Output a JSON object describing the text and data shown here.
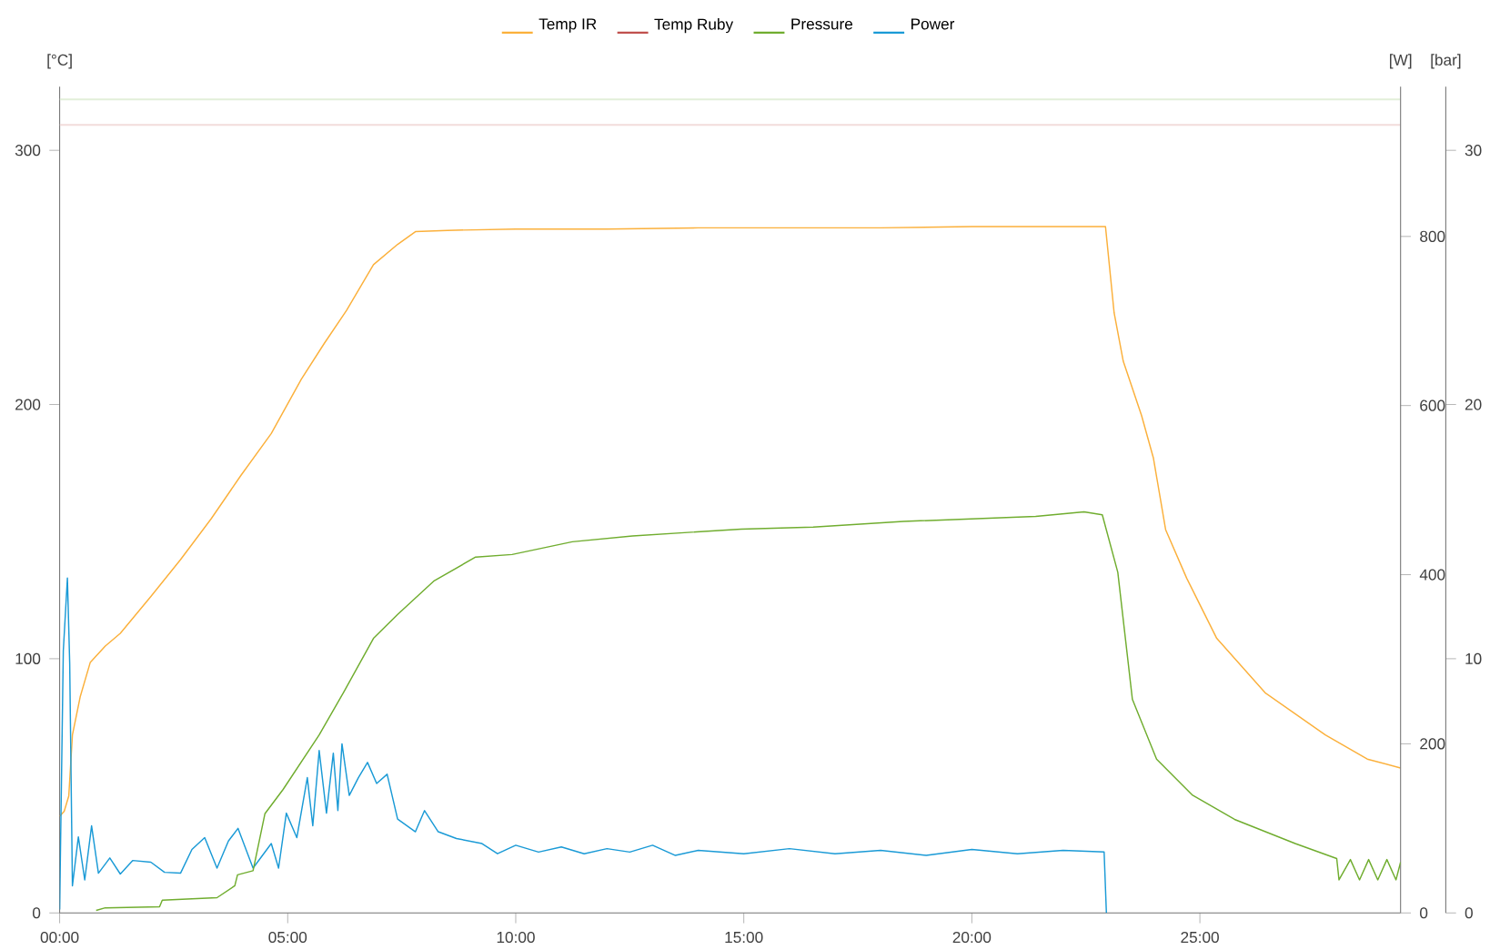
{
  "chart_data": {
    "type": "line",
    "ylabel": "[°C]",
    "y2label": "[W]",
    "y3label": "[bar]",
    "xlim": [
      0,
      29.4
    ],
    "xticks": [
      {
        "value": 0,
        "label": "00:00"
      },
      {
        "value": 5,
        "label": "05:00"
      },
      {
        "value": 10,
        "label": "10:00"
      },
      {
        "value": 15,
        "label": "15:00"
      },
      {
        "value": 20,
        "label": "20:00"
      },
      {
        "value": 25,
        "label": "25:00"
      }
    ],
    "ylim": [
      0,
      325
    ],
    "yticks": [
      0,
      100,
      200,
      300
    ],
    "y2lim": [
      0,
      977
    ],
    "y2ticks": [
      0,
      200,
      400,
      600,
      800
    ],
    "y3lim": [
      0,
      32.5
    ],
    "y3ticks": [
      0,
      10,
      20,
      30
    ],
    "legend": "top",
    "grid": false,
    "marker": "none",
    "line_style": "solid",
    "ref_lines": [
      {
        "axis": "y",
        "value": 320,
        "color": "#e2efd9"
      },
      {
        "axis": "y",
        "value": 310,
        "color": "#f2dcdb"
      }
    ],
    "series": [
      {
        "name": "Temp IR",
        "color": "#fbb03b",
        "axis": "y",
        "x": [
          0,
          0.1,
          0.2,
          0.28,
          0.45,
          0.67,
          1.0,
          1.33,
          2.0,
          2.65,
          3.32,
          3.97,
          4.64,
          5.3,
          5.8,
          6.29,
          6.88,
          7.41,
          7.8,
          8.5,
          10,
          12,
          14,
          16,
          18,
          20,
          22,
          22.93,
          23.12,
          23.32,
          23.72,
          23.98,
          24.25,
          24.71,
          25.37,
          26.43,
          27.75,
          28.67,
          29.4
        ],
        "values": [
          38,
          40,
          46,
          70,
          85,
          98.5,
          105,
          110,
          124.5,
          139,
          155,
          172,
          188.6,
          210,
          224,
          237,
          255,
          263,
          268,
          268.5,
          269,
          269,
          269.5,
          269.5,
          269.5,
          270,
          270,
          270,
          236,
          217,
          195.7,
          179,
          150.7,
          131.7,
          108,
          86.6,
          70,
          60.5,
          57
        ]
      },
      {
        "name": "Temp Ruby",
        "color": "#c0504d",
        "axis": "y"
      },
      {
        "name": "Pressure",
        "color": "#70ad2f",
        "axis": "y3",
        "x": [
          0.8,
          1.0,
          2.19,
          2.25,
          3.45,
          3.84,
          3.9,
          4.24,
          4.5,
          4.9,
          5.69,
          6.22,
          6.88,
          7.41,
          8.2,
          9.12,
          9.92,
          11.24,
          12.56,
          14.94,
          16.52,
          18.5,
          21.4,
          22.46,
          22.86,
          23.2,
          23.52,
          24.05,
          24.84,
          25.76,
          27.09,
          28.0,
          28.05,
          28.3,
          28.5,
          28.7,
          28.9,
          29.1,
          29.3,
          29.4
        ],
        "values": [
          0.1,
          0.2,
          0.24,
          0.5,
          0.6,
          1.07,
          1.5,
          1.66,
          3.9,
          4.86,
          7.0,
          8.66,
          10.8,
          11.74,
          13.05,
          14.0,
          14.1,
          14.6,
          14.83,
          15.1,
          15.18,
          15.4,
          15.6,
          15.78,
          15.66,
          13.4,
          8.4,
          6.05,
          4.63,
          3.68,
          2.73,
          2.14,
          1.3,
          2.1,
          1.3,
          2.1,
          1.3,
          2.1,
          1.3,
          2.0
        ]
      },
      {
        "name": "Power",
        "color": "#1a9ad6",
        "axis": "y2",
        "x": [
          0,
          0.02,
          0.08,
          0.17,
          0.22,
          0.28,
          0.41,
          0.55,
          0.7,
          0.85,
          1.1,
          1.33,
          1.6,
          2.0,
          2.3,
          2.65,
          2.9,
          3.18,
          3.45,
          3.7,
          3.91,
          4.24,
          4.64,
          4.8,
          4.97,
          5.2,
          5.43,
          5.55,
          5.69,
          5.85,
          6.0,
          6.1,
          6.19,
          6.35,
          6.55,
          6.75,
          6.95,
          7.18,
          7.41,
          7.8,
          8.0,
          8.3,
          8.7,
          9.26,
          9.6,
          10,
          10.5,
          11,
          11.5,
          12,
          12.5,
          13,
          13.5,
          14,
          15,
          16,
          17,
          18,
          19,
          20,
          21,
          22,
          22.9,
          22.95
        ],
        "values": [
          4,
          82,
          310,
          396,
          296,
          32,
          90,
          39,
          103,
          47,
          65,
          46,
          62,
          60,
          48,
          47,
          75,
          89,
          53,
          85,
          100,
          53,
          82,
          53,
          118,
          89,
          160,
          103,
          192,
          118,
          189,
          121,
          200,
          139,
          160,
          178,
          153,
          164,
          111,
          96,
          121,
          96,
          88,
          82,
          70,
          80,
          72,
          78,
          70,
          76,
          72,
          80,
          68,
          74,
          70,
          76,
          70,
          74,
          68,
          75,
          70,
          74,
          72,
          0
        ]
      }
    ]
  }
}
